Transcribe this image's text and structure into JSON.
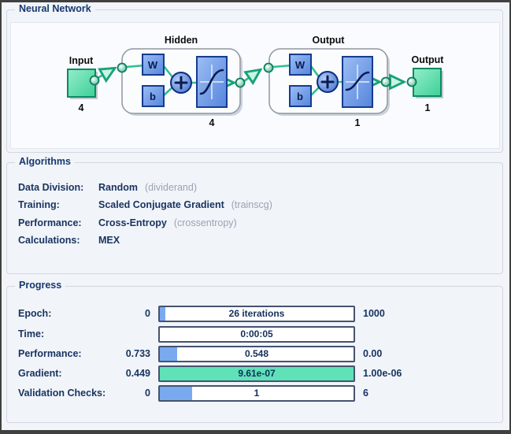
{
  "colors": {
    "window_bg": "#f1f4f9",
    "group_label_navy": "#16386e",
    "text_navy": "#17335f",
    "detail_gray": "#9ba3b1",
    "block_green": "#3ecf97",
    "block_blue": "#5585dc",
    "connection_green": "#2fbf8f",
    "bar_border": "#46536f",
    "bar_fill_blue": "#79aaf0",
    "bar_fill_teal": "#5fe2b8"
  },
  "sections": {
    "network_label": "Neural Network",
    "algorithms_label": "Algorithms",
    "progress_label": "Progress"
  },
  "diagram": {
    "input": {
      "label": "Input",
      "units": "4"
    },
    "hidden": {
      "label": "Hidden",
      "w_label": "W",
      "b_label": "b",
      "units": "4"
    },
    "output_layer": {
      "label": "Output",
      "w_label": "W",
      "b_label": "b",
      "units": "1"
    },
    "output": {
      "label": "Output",
      "units": "1"
    }
  },
  "algorithms": {
    "rows": [
      {
        "label": "Data Division:",
        "value": "Random",
        "detail": "(dividerand)"
      },
      {
        "label": "Training:",
        "value": "Scaled Conjugate Gradient",
        "detail": "(trainscg)"
      },
      {
        "label": "Performance:",
        "value": "Cross-Entropy",
        "detail": "(crossentropy)"
      },
      {
        "label": "Calculations:",
        "value": "MEX",
        "detail": ""
      }
    ]
  },
  "progress": {
    "rows": [
      {
        "label": "Epoch:",
        "start": "0",
        "bar_text": "26 iterations",
        "end": "1000",
        "fill_pct": 3,
        "fill_color": "#79aaf0"
      },
      {
        "label": "Time:",
        "start": "",
        "bar_text": "0:00:05",
        "end": "",
        "fill_pct": 0,
        "fill_color": "#79aaf0"
      },
      {
        "label": "Performance:",
        "start": "0.733",
        "bar_text": "0.548",
        "end": "0.00",
        "fill_pct": 9,
        "fill_color": "#79aaf0"
      },
      {
        "label": "Gradient:",
        "start": "0.449",
        "bar_text": "9.61e-07",
        "end": "1.00e-06",
        "fill_pct": 100,
        "fill_color": "#5fe2b8"
      },
      {
        "label": "Validation Checks:",
        "start": "0",
        "bar_text": "1",
        "end": "6",
        "fill_pct": 16.5,
        "fill_color": "#79aaf0"
      }
    ]
  }
}
